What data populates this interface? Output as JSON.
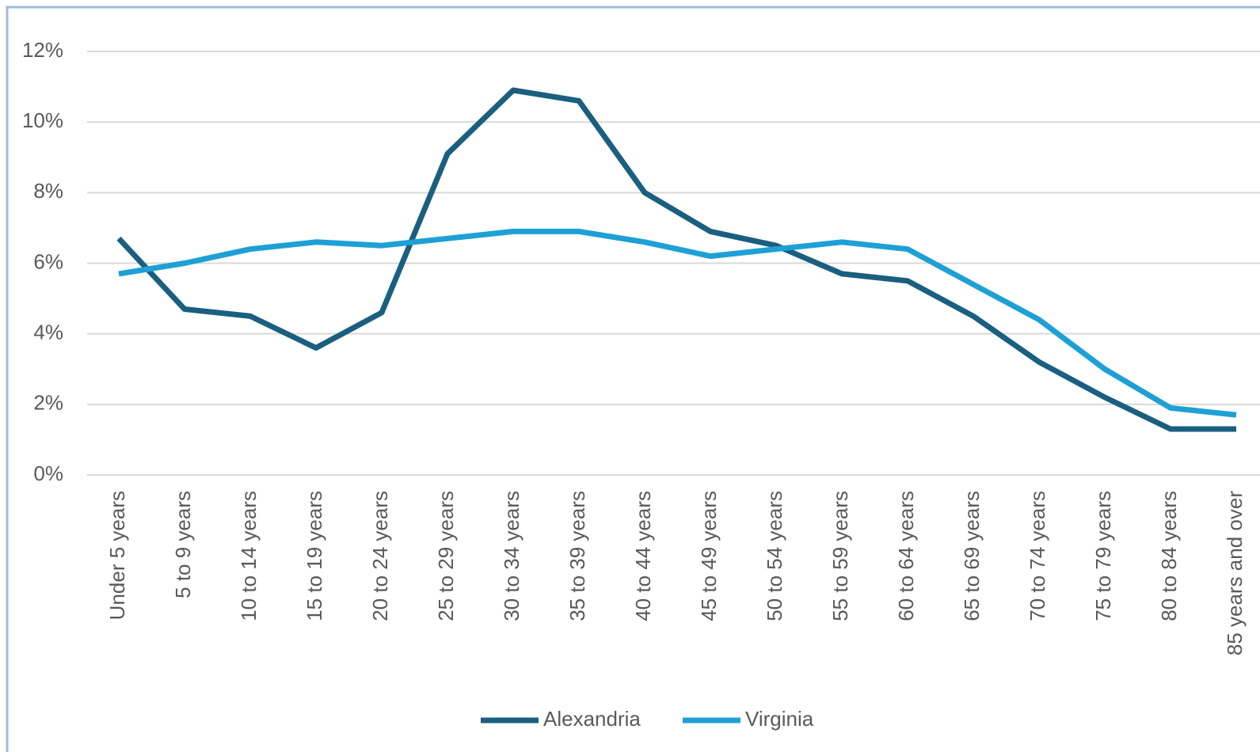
{
  "chart_data": {
    "type": "line",
    "categories": [
      "Under 5 years",
      "5 to 9 years",
      "10 to 14 years",
      "15 to 19 years",
      "20 to 24 years",
      "25 to 29 years",
      "30 to 34 years",
      "35 to 39 years",
      "40 to 44 years",
      "45 to 49 years",
      "50 to 54 years",
      "55 to 59 years",
      "60 to 64 years",
      "65 to 69 years",
      "70 to 74 years",
      "75 to 79 years",
      "80 to 84 years",
      "85 years and over"
    ],
    "series": [
      {
        "name": "Alexandria",
        "color": "#1a5f80",
        "values": [
          6.7,
          4.7,
          4.5,
          3.6,
          4.6,
          9.1,
          10.9,
          10.6,
          8.0,
          6.9,
          6.5,
          5.7,
          5.5,
          4.5,
          3.2,
          2.2,
          1.3,
          1.3
        ]
      },
      {
        "name": "Virginia",
        "color": "#1ea0d5",
        "values": [
          5.7,
          6.0,
          6.4,
          6.6,
          6.5,
          6.7,
          6.9,
          6.9,
          6.6,
          6.2,
          6.4,
          6.6,
          6.4,
          5.4,
          4.4,
          3.0,
          1.9,
          1.7
        ]
      }
    ],
    "ylim": [
      0,
      12
    ],
    "yticks": [
      {
        "value": 0,
        "label": "0%"
      },
      {
        "value": 2,
        "label": "2%"
      },
      {
        "value": 4,
        "label": "4%"
      },
      {
        "value": 6,
        "label": "6%"
      },
      {
        "value": 8,
        "label": "8%"
      },
      {
        "value": 10,
        "label": "10%"
      },
      {
        "value": 12,
        "label": "12%"
      }
    ],
    "grid": true,
    "legend": "bottom"
  }
}
